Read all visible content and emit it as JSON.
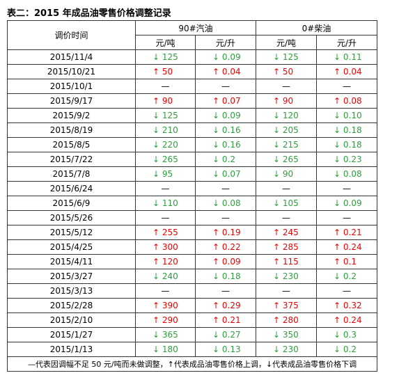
{
  "title": "表二：2015 年成品油零售价格调整记录",
  "table": {
    "date_header": "调价时间",
    "groups": [
      "90#汽油",
      "0#柴油"
    ],
    "units": [
      "元/吨",
      "元/升",
      "元/吨",
      "元/升"
    ],
    "rows": [
      [
        "2015/11/4",
        "↓ 125",
        "↓ 0.09",
        "↓ 125",
        "↓ 0.11"
      ],
      [
        "2015/10/21",
        "↑ 50",
        "↑ 0.04",
        "↑ 50",
        "↑ 0.04"
      ],
      [
        "2015/10/1",
        "—",
        "—",
        "—",
        "—"
      ],
      [
        "2015/9/17",
        "↑ 90",
        "↑ 0.07",
        "↑ 90",
        "↑ 0.08"
      ],
      [
        "2015/9/2",
        "↓ 125",
        "↓ 0.09",
        "↓ 120",
        "↓ 0.10"
      ],
      [
        "2015/8/19",
        "↓ 210",
        "↓ 0.16",
        "↓ 205",
        "↓ 0.18"
      ],
      [
        "2015/8/5",
        "↓ 220",
        "↓ 0.16",
        "↓ 215",
        "↓ 0.18"
      ],
      [
        "2015/7/22",
        "↓ 265",
        "↓ 0.2",
        "↓ 265",
        "↓ 0.23"
      ],
      [
        "2015/7/8",
        "↓ 95",
        "↓ 0.07",
        "↓ 90",
        "↓ 0.08"
      ],
      [
        "2015/6/24",
        "—",
        "—",
        "—",
        "—"
      ],
      [
        "2015/6/9",
        "↓ 110",
        "↓ 0.08",
        "↓ 105",
        "↓ 0.09"
      ],
      [
        "2015/5/26",
        "—",
        "—",
        "—",
        "—"
      ],
      [
        "2015/5/12",
        "↑ 255",
        "↑ 0.19",
        "↑ 245",
        "↑ 0.21"
      ],
      [
        "2015/4/25",
        "↑ 300",
        "↑ 0.22",
        "↑ 285",
        "↑ 0.24"
      ],
      [
        "2015/4/11",
        "↑ 120",
        "↑ 0.09",
        "↑ 115",
        "↑ 0.1"
      ],
      [
        "2015/3/27",
        "↓ 240",
        "↓ 0.18",
        "↓ 230",
        "↓ 0.2"
      ],
      [
        "2015/3/13",
        "—",
        "—",
        "—",
        "—"
      ],
      [
        "2015/2/28",
        "↑ 390",
        "↑ 0.29",
        "↑ 375",
        "↑ 0.32"
      ],
      [
        "2015/2/10",
        "↑ 290",
        "↑ 0.21",
        "↑ 280",
        "↑ 0.24"
      ],
      [
        "2015/1/27",
        "↓ 365",
        "↓ 0.27",
        "↓ 350",
        "↓ 0.3"
      ],
      [
        "2015/1/13",
        "↓ 180",
        "↓ 0.13",
        "↓ 230",
        "↓ 0.2"
      ]
    ],
    "note": "—代表因调幅不足 50 元/吨而未做调整，↑代表成品油零售价格上调，↓代表成品油零售价格下调"
  },
  "colors": {
    "up": "#ee0000",
    "down": "#2e9e3e"
  }
}
